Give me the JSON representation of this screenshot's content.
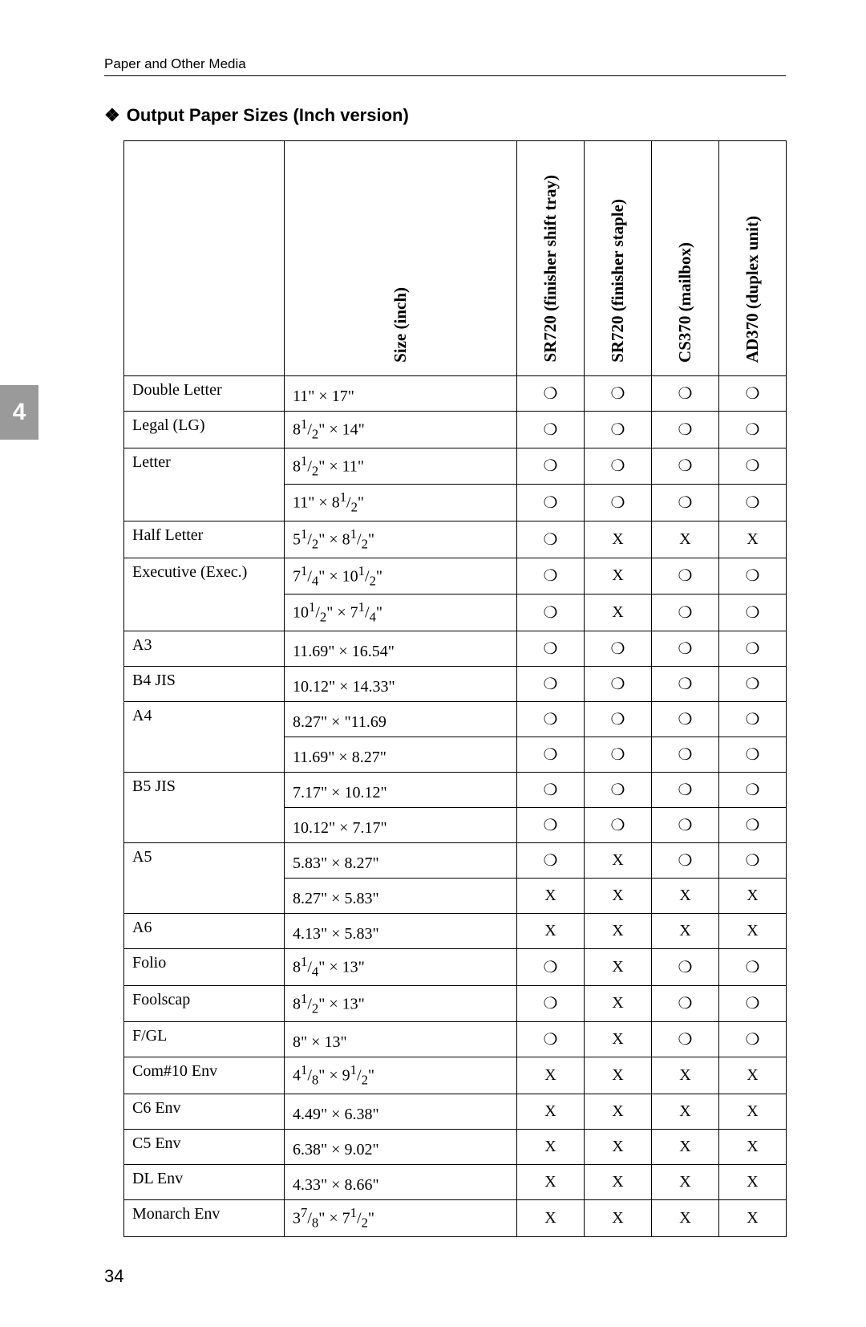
{
  "running_head": "Paper and Other Media",
  "section_title": "Output Paper Sizes (Inch version)",
  "side_tab": "4",
  "page_number": "34",
  "glyph_yes": "❍",
  "glyph_no": "X",
  "headers": {
    "size": "Size (inch)",
    "c1": "SR720 (finisher shift tray)",
    "c2": "SR720 (finisher staple)",
    "c3": "CS370 (mailbox)",
    "c4": "AD370 (duplex unit)"
  },
  "rows": [
    {
      "name": "Double Letter",
      "sizes": [
        {
          "html": "11\" × 17\""
        }
      ],
      "marks": [
        [
          "O",
          "O",
          "O",
          "O"
        ]
      ]
    },
    {
      "name": "Legal (LG)",
      "sizes": [
        {
          "html": "8<sup>1</sup>/<sub>2</sub>\" × 14\""
        }
      ],
      "marks": [
        [
          "O",
          "O",
          "O",
          "O"
        ]
      ]
    },
    {
      "name": "Letter",
      "sizes": [
        {
          "html": "8<sup>1</sup>/<sub>2</sub>\" × 11\""
        },
        {
          "html": "11\" × 8<sup>1</sup>/<sub>2</sub>\""
        }
      ],
      "marks": [
        [
          "O",
          "O",
          "O",
          "O"
        ],
        [
          "O",
          "O",
          "O",
          "O"
        ]
      ]
    },
    {
      "name": "Half Letter",
      "sizes": [
        {
          "html": "5<sup>1</sup>/<sub>2</sub>\" × 8<sup>1</sup>/<sub>2</sub>\""
        }
      ],
      "marks": [
        [
          "O",
          "X",
          "X",
          "X"
        ]
      ]
    },
    {
      "name": "Executive (Exec.)",
      "sizes": [
        {
          "html": "7<sup>1</sup>/<sub>4</sub>\" × 10<sup>1</sup>/<sub>2</sub>\""
        },
        {
          "html": "10<sup>1</sup>/<sub>2</sub>\" × 7<sup>1</sup>/<sub>4</sub>\""
        }
      ],
      "marks": [
        [
          "O",
          "X",
          "O",
          "O"
        ],
        [
          "O",
          "X",
          "O",
          "O"
        ]
      ]
    },
    {
      "name": "A3",
      "sizes": [
        {
          "html": "11.69\" × 16.54\""
        }
      ],
      "marks": [
        [
          "O",
          "O",
          "O",
          "O"
        ]
      ]
    },
    {
      "name": "B4 JIS",
      "sizes": [
        {
          "html": "10.12\" × 14.33\""
        }
      ],
      "marks": [
        [
          "O",
          "O",
          "O",
          "O"
        ]
      ]
    },
    {
      "name": "A4",
      "sizes": [
        {
          "html": "8.27\" × \"11.69"
        },
        {
          "html": "11.69\" × 8.27\""
        }
      ],
      "marks": [
        [
          "O",
          "O",
          "O",
          "O"
        ],
        [
          "O",
          "O",
          "O",
          "O"
        ]
      ]
    },
    {
      "name": "B5 JIS",
      "sizes": [
        {
          "html": "7.17\" × 10.12\""
        },
        {
          "html": "10.12\" × 7.17\""
        }
      ],
      "marks": [
        [
          "O",
          "O",
          "O",
          "O"
        ],
        [
          "O",
          "O",
          "O",
          "O"
        ]
      ]
    },
    {
      "name": "A5",
      "sizes": [
        {
          "html": "5.83\" × 8.27\""
        },
        {
          "html": "8.27\" × 5.83\""
        }
      ],
      "marks": [
        [
          "O",
          "X",
          "O",
          "O"
        ],
        [
          "X",
          "X",
          "X",
          "X"
        ]
      ]
    },
    {
      "name": "A6",
      "sizes": [
        {
          "html": "4.13\" × 5.83\""
        }
      ],
      "marks": [
        [
          "X",
          "X",
          "X",
          "X"
        ]
      ]
    },
    {
      "name": "Folio",
      "sizes": [
        {
          "html": "8<sup>1</sup>/<sub>4</sub>\" × 13\""
        }
      ],
      "marks": [
        [
          "O",
          "X",
          "O",
          "O"
        ]
      ]
    },
    {
      "name": "Foolscap",
      "sizes": [
        {
          "html": "8<sup>1</sup>/<sub>2</sub>\" × 13\""
        }
      ],
      "marks": [
        [
          "O",
          "X",
          "O",
          "O"
        ]
      ]
    },
    {
      "name": "F/GL",
      "sizes": [
        {
          "html": "8\" × 13\""
        }
      ],
      "marks": [
        [
          "O",
          "X",
          "O",
          "O"
        ]
      ]
    },
    {
      "name": "Com#10 Env",
      "sizes": [
        {
          "html": "4<sup>1</sup>/<sub>8</sub>\" × 9<sup>1</sup>/<sub>2</sub>\""
        }
      ],
      "marks": [
        [
          "X",
          "X",
          "X",
          "X"
        ]
      ]
    },
    {
      "name": "C6 Env",
      "sizes": [
        {
          "html": "4.49\" × 6.38\""
        }
      ],
      "marks": [
        [
          "X",
          "X",
          "X",
          "X"
        ]
      ]
    },
    {
      "name": "C5 Env",
      "sizes": [
        {
          "html": "6.38\" × 9.02\""
        }
      ],
      "marks": [
        [
          "X",
          "X",
          "X",
          "X"
        ]
      ]
    },
    {
      "name": "DL Env",
      "sizes": [
        {
          "html": "4.33\" × 8.66\""
        }
      ],
      "marks": [
        [
          "X",
          "X",
          "X",
          "X"
        ]
      ]
    },
    {
      "name": "Monarch Env",
      "sizes": [
        {
          "html": "3<sup>7</sup>/<sub>8</sub>\" × 7<sup>1</sup>/<sub>2</sub>\""
        }
      ],
      "marks": [
        [
          "X",
          "X",
          "X",
          "X"
        ]
      ]
    }
  ]
}
